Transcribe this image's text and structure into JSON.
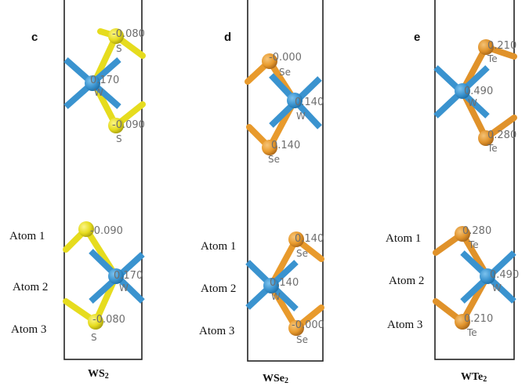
{
  "colors": {
    "W": "#3a93cf",
    "W_dark": "#1f6fa6",
    "S": "#e6dc1e",
    "S_dark": "#a79f10",
    "Se": "#e89a2c",
    "Se_dark": "#a8661a",
    "Te": "#e0922a",
    "Te_dark": "#a4651a",
    "label_gray": "#6e6e6e"
  },
  "atom_labels": [
    "Atom 1",
    "Atom 2",
    "Atom 3"
  ],
  "panels": [
    {
      "letter": "c",
      "caption_main": "WS",
      "caption_sub": "2",
      "chalcogen": "S",
      "top": {
        "x1": "-0.080",
        "e1": "S",
        "w": "0.170",
        "ew": "W",
        "x2": "-0.090",
        "e2": "S"
      },
      "bottom": {
        "x1": "-0.090",
        "e1": "S",
        "w": "0.170",
        "ew": "W",
        "x2": "-0.080",
        "e2": "S"
      }
    },
    {
      "letter": "d",
      "caption_main": "WSe",
      "caption_sub": "2",
      "chalcogen": "Se",
      "top": {
        "x1": "-0.000",
        "e1": "Se",
        "w": "0.140",
        "ew": "W",
        "x2": "0.140",
        "e2": "Se"
      },
      "bottom": {
        "x1": "0.140",
        "e1": "Se",
        "w": "0.140",
        "ew": "W",
        "x2": "-0.000",
        "e2": "Se"
      }
    },
    {
      "letter": "e",
      "caption_main": "WTe",
      "caption_sub": "2",
      "chalcogen": "Te",
      "top": {
        "x1": "0.210",
        "e1": "Te",
        "w": "0.490",
        "ew": "W",
        "x2": "0.280",
        "e2": "Te"
      },
      "bottom": {
        "x1": "0.280",
        "e1": "Te",
        "w": "0.490",
        "ew": "W",
        "x2": "0.210",
        "e2": "Te"
      }
    }
  ]
}
